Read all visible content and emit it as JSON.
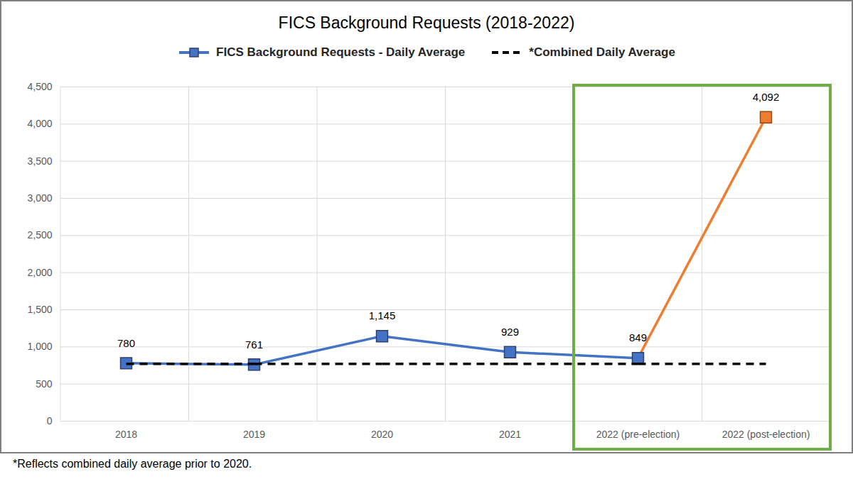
{
  "chart_data": {
    "type": "line",
    "title": "FICS Background Requests (2018-2022)",
    "caption": "*Reflects combined daily average prior to 2020.",
    "categories": [
      "2018",
      "2019",
      "2020",
      "2021",
      "2022 (pre-election)",
      "2022 (post-election)"
    ],
    "series": [
      {
        "name": "FICS Background Requests - Daily Average",
        "color": "#4472c4",
        "colors": [
          "#4472c4",
          "#4472c4",
          "#4472c4",
          "#4472c4",
          "#4472c4",
          "#ed7d31"
        ],
        "marker": "square",
        "line_style": "solid",
        "data_labels": true,
        "values": [
          780,
          761,
          1145,
          929,
          849,
          4092
        ],
        "value_labels": [
          "780",
          "761",
          "1,145",
          "929",
          "849",
          "4,092"
        ]
      },
      {
        "name": "*Combined Daily Average",
        "color": "#000000",
        "marker": "none",
        "line_style": "dashed",
        "values": [
          771,
          771,
          771,
          771,
          771,
          771
        ]
      }
    ],
    "ylim": [
      0,
      4500
    ],
    "yticks": [
      0,
      500,
      {
        "value": 1000,
        "label": "1,000"
      },
      {
        "value": 1500,
        "label": "1,500"
      },
      {
        "value": 2000,
        "label": "2,000"
      },
      {
        "value": 2500,
        "label": "2,500"
      },
      {
        "value": 3000,
        "label": "3,000"
      },
      {
        "value": 3500,
        "label": "3,500"
      },
      {
        "value": 4000,
        "label": "4,000"
      },
      {
        "value": 4500,
        "label": "4,500"
      }
    ],
    "grid": true,
    "legend": "top"
  }
}
